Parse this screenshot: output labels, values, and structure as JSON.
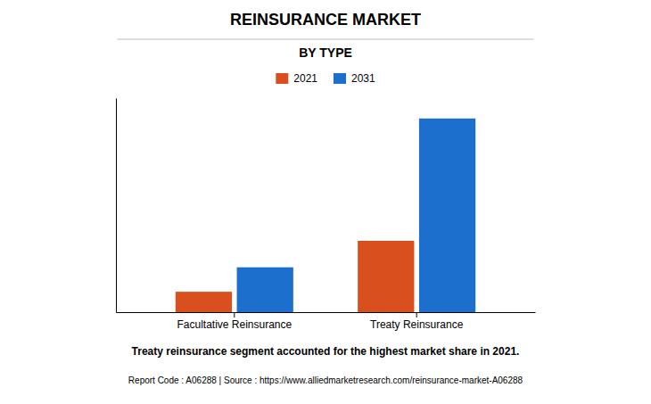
{
  "chart_data": {
    "type": "bar",
    "title": "REINSURANCE MARKET",
    "subtitle": "BY TYPE",
    "categories": [
      "Facultative Reinsurance",
      "Treaty Reinsurance"
    ],
    "series": [
      {
        "name": "2021",
        "values": [
          10,
          35
        ],
        "color": "#d94f1e"
      },
      {
        "name": "2031",
        "values": [
          22,
          95
        ],
        "color": "#1c6fcd"
      }
    ],
    "ylim": [
      0,
      105
    ],
    "grid": false,
    "legend": "top",
    "tick_labels": "x",
    "annotations": [
      "Treaty reinsurance segment accounted for the highest market share in 2021.",
      "Report Code : A06288  |  Source : https://www.alliedmarketresearch.com/reinsurance-market-A06288"
    ]
  }
}
